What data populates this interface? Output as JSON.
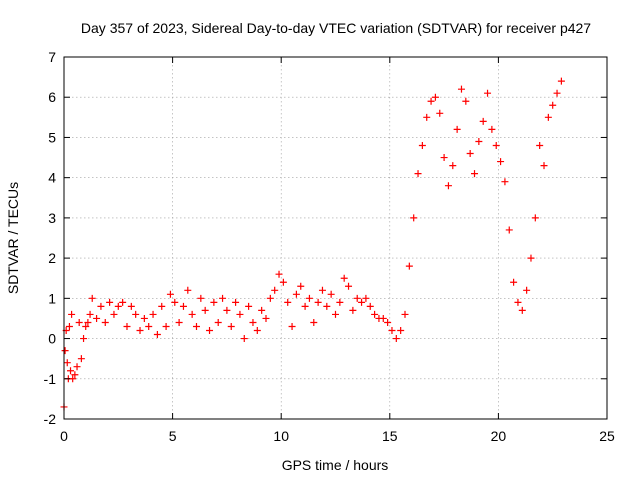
{
  "chart_data": {
    "type": "scatter",
    "title": "Day 357 of 2023, Sidereal Day-to-day VTEC variation (SDTVAR) for receiver p427",
    "xlabel": "GPS time / hours",
    "ylabel": "SDTVAR / TECUs",
    "xlim": [
      0,
      25
    ],
    "ylim": [
      -2,
      7
    ],
    "xticks": [
      "0",
      "5",
      "10",
      "15",
      "20",
      "25"
    ],
    "yticks": [
      "-2",
      "-1",
      "0",
      "1",
      "2",
      "3",
      "4",
      "5",
      "6",
      "7"
    ],
    "grid": true,
    "marker": "+",
    "series": [
      {
        "name": "SDTVAR",
        "color": "#ff0000",
        "x": [
          0.0,
          0.05,
          0.1,
          0.15,
          0.2,
          0.25,
          0.3,
          0.35,
          0.4,
          0.5,
          0.6,
          0.7,
          0.8,
          0.9,
          1.0,
          1.1,
          1.2,
          1.3,
          1.5,
          1.7,
          1.9,
          2.1,
          2.3,
          2.5,
          2.7,
          2.9,
          3.1,
          3.3,
          3.5,
          3.7,
          3.9,
          4.1,
          4.3,
          4.5,
          4.7,
          4.9,
          5.1,
          5.3,
          5.5,
          5.7,
          5.9,
          6.1,
          6.3,
          6.5,
          6.7,
          6.9,
          7.1,
          7.3,
          7.5,
          7.7,
          7.9,
          8.1,
          8.3,
          8.5,
          8.7,
          8.9,
          9.1,
          9.3,
          9.5,
          9.7,
          9.9,
          10.1,
          10.3,
          10.5,
          10.7,
          10.9,
          11.1,
          11.3,
          11.5,
          11.7,
          11.9,
          12.1,
          12.3,
          12.5,
          12.7,
          12.9,
          13.1,
          13.3,
          13.5,
          13.7,
          13.9,
          14.1,
          14.3,
          14.5,
          14.7,
          14.9,
          15.1,
          15.3,
          15.5,
          15.7,
          15.9,
          16.1,
          16.3,
          16.5,
          16.7,
          16.9,
          17.1,
          17.3,
          17.5,
          17.7,
          17.9,
          18.1,
          18.3,
          18.5,
          18.7,
          18.9,
          19.1,
          19.3,
          19.5,
          19.7,
          19.9,
          20.1,
          20.3,
          20.5,
          20.7,
          20.9,
          21.1,
          21.3,
          21.5,
          21.7,
          21.9,
          22.1,
          22.3,
          22.5,
          22.7,
          22.9
        ],
        "y": [
          -1.7,
          -0.3,
          0.2,
          -0.6,
          -1.0,
          0.3,
          -0.8,
          0.6,
          -1.0,
          -0.9,
          -0.7,
          0.4,
          -0.5,
          0.0,
          0.3,
          0.4,
          0.6,
          1.0,
          0.5,
          0.8,
          0.4,
          0.9,
          0.6,
          0.8,
          0.9,
          0.3,
          0.8,
          0.6,
          0.2,
          0.5,
          0.3,
          0.6,
          0.1,
          0.8,
          0.3,
          1.1,
          0.9,
          0.4,
          0.8,
          1.2,
          0.6,
          0.3,
          1.0,
          0.7,
          0.2,
          0.9,
          0.4,
          1.0,
          0.7,
          0.3,
          0.9,
          0.6,
          0.0,
          0.8,
          0.4,
          0.2,
          0.7,
          0.5,
          1.0,
          1.2,
          1.6,
          1.4,
          0.9,
          0.3,
          1.1,
          1.3,
          0.8,
          1.0,
          0.4,
          0.9,
          1.2,
          0.8,
          1.1,
          0.6,
          0.9,
          1.5,
          1.3,
          0.7,
          1.0,
          0.9,
          1.0,
          0.8,
          0.6,
          0.5,
          0.5,
          0.4,
          0.2,
          0.0,
          0.2,
          0.6,
          1.8,
          3.0,
          4.1,
          4.8,
          5.5,
          5.9,
          6.0,
          5.6,
          4.5,
          3.8,
          4.3,
          5.2,
          6.2,
          5.9,
          4.6,
          4.1,
          4.9,
          5.4,
          6.1,
          5.2,
          4.8,
          4.4,
          3.9,
          2.7,
          1.4,
          0.9,
          0.7,
          1.2,
          2.0,
          3.0,
          4.8,
          4.3,
          5.5,
          5.8,
          6.1,
          6.4
        ]
      }
    ]
  }
}
